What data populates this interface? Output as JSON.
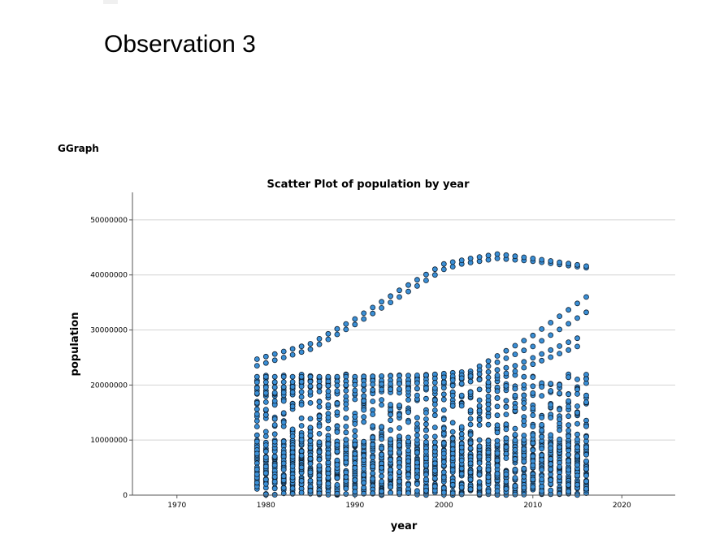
{
  "page": {
    "heading": "Observation 3",
    "output_label": "GGraph"
  },
  "colors": {
    "point_fill": "#3a8fd6",
    "point_stroke": "#0f1e2e",
    "gridline": "#d4d4d4",
    "axis": "#555555"
  },
  "chart_data": {
    "type": "scatter",
    "title": "Scatter Plot of population by year",
    "xlabel": "year",
    "ylabel": "population",
    "xlim": [
      1965,
      2026
    ],
    "ylim": [
      0,
      55000000
    ],
    "x_ticks": [
      1970,
      1980,
      1990,
      2000,
      2010,
      2020
    ],
    "x_tick_labels": [
      "1970",
      "1980",
      "1990",
      "2000",
      "2010",
      "2020"
    ],
    "y_ticks": [
      0,
      10000000,
      20000000,
      30000000,
      40000000,
      50000000
    ],
    "y_tick_labels": [
      "0",
      "10000000",
      "20000000",
      "30000000",
      "40000000",
      "50000000"
    ],
    "grid": "horizontal",
    "legend": "none",
    "x_range_years": [
      1979,
      2016
    ],
    "upper_trajectories": [
      {
        "points": [
          [
            1979,
            23500000
          ],
          [
            1985,
            26500000
          ],
          [
            1990,
            31000000
          ],
          [
            1995,
            36000000
          ],
          [
            2000,
            41000000
          ],
          [
            2002,
            42000000
          ],
          [
            2006,
            43000000
          ],
          [
            2010,
            42500000
          ],
          [
            2016,
            41300000
          ]
        ]
      },
      {
        "points": [
          [
            1979,
            24700000
          ],
          [
            1985,
            27500000
          ],
          [
            1990,
            32000000
          ],
          [
            1995,
            37200000
          ],
          [
            2000,
            42000000
          ],
          [
            2003,
            43000000
          ],
          [
            2006,
            43800000
          ],
          [
            2010,
            43000000
          ],
          [
            2016,
            41600000
          ]
        ]
      },
      {
        "points": [
          [
            1979,
            21500000
          ],
          [
            1990,
            21500000
          ],
          [
            1998,
            21800000
          ],
          [
            2003,
            22500000
          ],
          [
            2010,
            29000000
          ],
          [
            2016,
            36000000
          ]
        ]
      },
      {
        "points": [
          [
            1979,
            20500000
          ],
          [
            1990,
            20700000
          ],
          [
            1998,
            21000000
          ],
          [
            2003,
            22000000
          ],
          [
            2010,
            27000000
          ],
          [
            2016,
            33200000
          ]
        ]
      },
      {
        "points": [
          [
            1979,
            19500000
          ],
          [
            2000,
            20500000
          ],
          [
            2008,
            23500000
          ],
          [
            2015,
            28500000
          ]
        ]
      },
      {
        "points": [
          [
            1979,
            18500000
          ],
          [
            2000,
            19500000
          ],
          [
            2008,
            22500000
          ],
          [
            2015,
            27000000
          ]
        ]
      }
    ]
  }
}
